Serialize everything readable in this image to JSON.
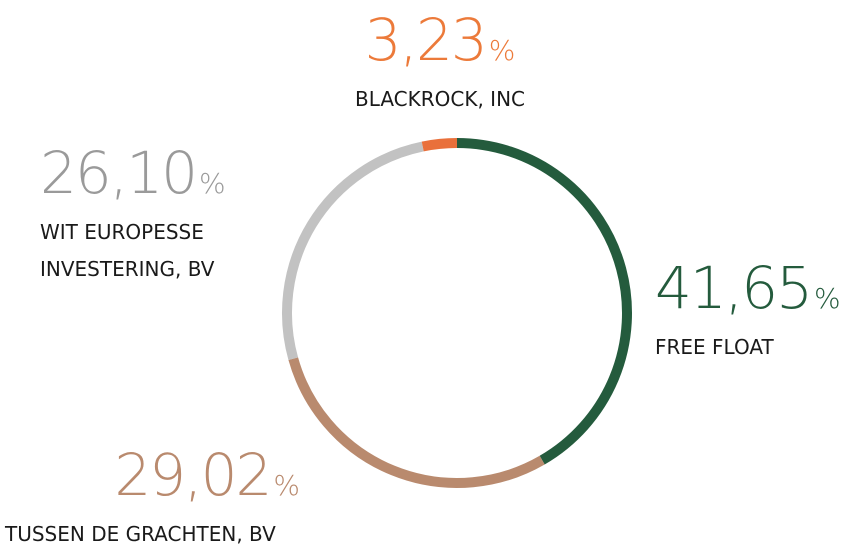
{
  "chart_data": {
    "type": "donut",
    "categories": [
      "FREE FLOAT",
      "TUSSEN DE GRACHTEN, BV",
      "WIT EUROPESSE INVESTERING, BV",
      "BLACKROCK, INC"
    ],
    "values": [
      41.65,
      29.02,
      26.1,
      3.23
    ],
    "value_labels": [
      "41,65",
      "29,02",
      "26,10",
      "3,23"
    ],
    "unit": "%",
    "colors": [
      "#245b3d",
      "#b98a6e",
      "#c2c2c2",
      "#e9703b"
    ],
    "label_colors": [
      "#245b3d",
      "#b98a6e",
      "#9a9a9a",
      "#ec7a3a"
    ]
  }
}
